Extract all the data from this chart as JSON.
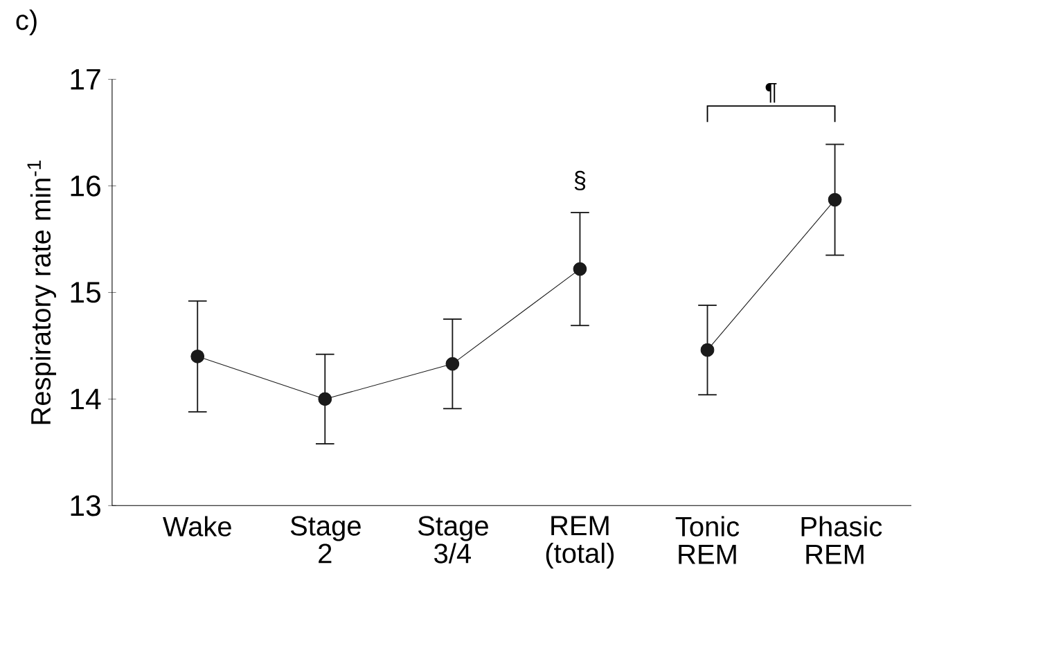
{
  "chart_data": {
    "type": "line",
    "ylabel": "Respiratory rate  min$^{-1}$",
    "categories": [
      "Wake",
      "Stage 2",
      "Stage 3/4",
      "REM (total)",
      "Tonic REM",
      "Phasic REM"
    ],
    "series": [
      {
        "color": "#1a1a1a",
        "values": [
          14.4,
          14.0,
          14.33,
          15.22,
          null,
          null
        ],
        "errors": [
          0.52,
          0.42,
          0.42,
          0.53,
          null,
          null
        ]
      },
      {
        "color": "#1a1a1a",
        "values": [
          null,
          null,
          null,
          null,
          14.46,
          15.87
        ],
        "errors": [
          null,
          null,
          null,
          null,
          0.42,
          0.52
        ]
      }
    ],
    "ylim": [
      13,
      17
    ],
    "yticks": [
      13,
      14,
      15,
      16,
      17
    ],
    "marker": "circle",
    "line_style": "solid",
    "grid": false,
    "annotations": [
      "c)",
      "§",
      "¶"
    ]
  }
}
